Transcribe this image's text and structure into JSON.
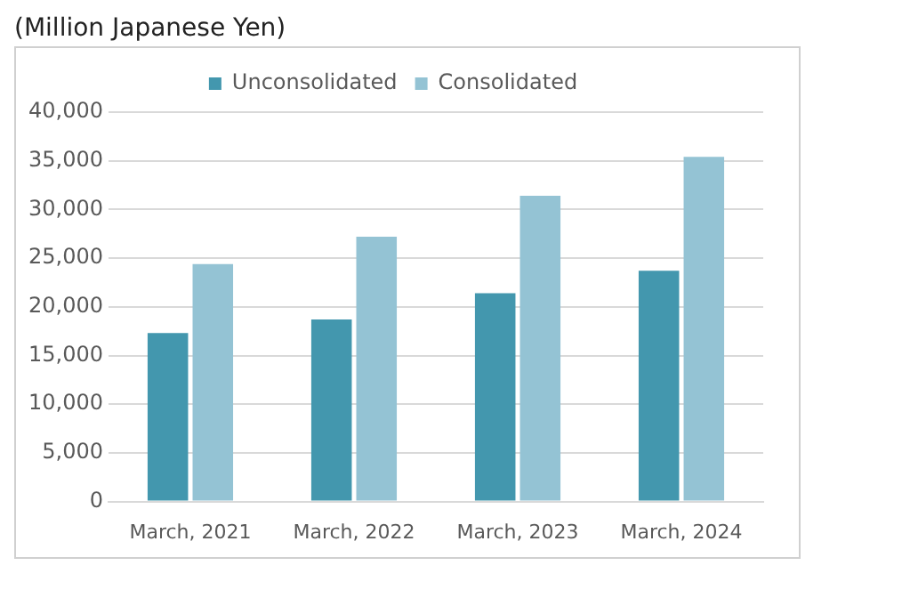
{
  "chart_data": {
    "type": "bar",
    "title": "(Million Japanese Yen)",
    "categories": [
      "March, 2021",
      "March, 2022",
      "March, 2023",
      "March, 2024"
    ],
    "series": [
      {
        "name": "Unconsolidated",
        "color": "#4397ae",
        "values": [
          17300,
          18700,
          21400,
          23700
        ]
      },
      {
        "name": "Consolidated",
        "color": "#94c3d4",
        "values": [
          24400,
          27200,
          31400,
          35400
        ]
      }
    ],
    "ylim": [
      0,
      40000
    ],
    "yticks": [
      {
        "value": 0,
        "label": "0"
      },
      {
        "value": 5000,
        "label": "5,000"
      },
      {
        "value": 10000,
        "label": "10,000"
      },
      {
        "value": 15000,
        "label": "15,000"
      },
      {
        "value": 20000,
        "label": "20,000"
      },
      {
        "value": 25000,
        "label": "25,000"
      },
      {
        "value": 30000,
        "label": "30,000"
      },
      {
        "value": 35000,
        "label": "35,000"
      },
      {
        "value": 40000,
        "label": "40,000"
      }
    ],
    "grid": "y",
    "legend": "top"
  }
}
